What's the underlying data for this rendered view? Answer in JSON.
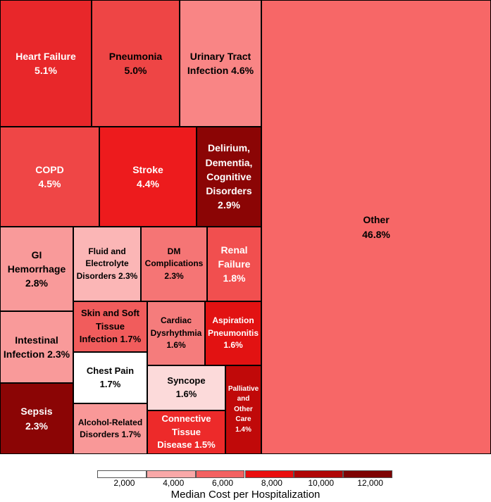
{
  "chart_data": {
    "type": "treemap",
    "colorbar_label": "Median Cost per Hospitalization",
    "colorbar_ticks": [
      "2,000",
      "4,000",
      "6,000",
      "8,000",
      "10,000",
      "12,000"
    ],
    "colorbar_colors": [
      "#ffffff",
      "#f9a8a8",
      "#f36161",
      "#ea0e0e",
      "#b00606",
      "#7e0303"
    ],
    "items": [
      {
        "label": "Heart Failure",
        "pct": "5.1%",
        "share": 5.1,
        "cost_bin": 4,
        "color": "#e8272a"
      },
      {
        "label": "Pneumonia",
        "pct": "5.0%",
        "share": 5.0,
        "cost_bin": 3,
        "color": "#ee4545"
      },
      {
        "label": "Urinary Tract Infection",
        "pct": "4.6%",
        "share": 4.6,
        "cost_bin": 2,
        "color": "#f98585"
      },
      {
        "label": "COPD",
        "pct": "4.5%",
        "share": 4.5,
        "cost_bin": 3,
        "color": "#ef4646"
      },
      {
        "label": "Stroke",
        "pct": "4.4%",
        "share": 4.4,
        "cost_bin": 4,
        "color": "#ed1b1d"
      },
      {
        "label": "Delirium, Dementia, Cognitive Disorders",
        "pct": "2.9%",
        "share": 2.9,
        "cost_bin": 6,
        "color": "#8b0505"
      },
      {
        "label": "GI Hemorrhage",
        "pct": "2.8%",
        "share": 2.8,
        "cost_bin": 2,
        "color": "#f99a9a"
      },
      {
        "label": "Fluid and Electrolyte Disorders",
        "pct": "2.3%",
        "share": 2.3,
        "cost_bin": 2,
        "color": "#fbb6b6"
      },
      {
        "label": "DM Complications",
        "pct": "2.3%",
        "share": 2.3,
        "cost_bin": 3,
        "color": "#f57575"
      },
      {
        "label": "Renal Failure",
        "pct": "1.8%",
        "share": 1.8,
        "cost_bin": 3,
        "color": "#f14f4f"
      },
      {
        "label": "Intestinal Infection",
        "pct": "2.3%",
        "share": 2.3,
        "cost_bin": 2,
        "color": "#f99a9a"
      },
      {
        "label": "Sepsis",
        "pct": "2.3%",
        "share": 2.3,
        "cost_bin": 6,
        "color": "#8b0505"
      },
      {
        "label": "Skin and Soft Tissue Infection",
        "pct": "1.7%",
        "share": 1.7,
        "cost_bin": 3,
        "color": "#f15c5c"
      },
      {
        "label": "Chest Pain",
        "pct": "1.7%",
        "share": 1.7,
        "cost_bin": 1,
        "color": "#ffffff"
      },
      {
        "label": "Alcohol-Related Disorders",
        "pct": "1.7%",
        "share": 1.7,
        "cost_bin": 2,
        "color": "#f99898"
      },
      {
        "label": "Cardiac Dysrhythmia",
        "pct": "1.6%",
        "share": 1.6,
        "cost_bin": 2,
        "color": "#f57c7c"
      },
      {
        "label": "Aspiration Pneumonitis",
        "pct": "1.6%",
        "share": 1.6,
        "cost_bin": 4,
        "color": "#e21212"
      },
      {
        "label": "Syncope",
        "pct": "1.6%",
        "share": 1.6,
        "cost_bin": 1,
        "color": "#fcdada"
      },
      {
        "label": "Connective Tissue Disease",
        "pct": "1.5%",
        "share": 1.5,
        "cost_bin": 4,
        "color": "#ed2a2a"
      },
      {
        "label": "Palliative and Other Care",
        "pct": "1.4%",
        "share": 1.4,
        "cost_bin": 5,
        "color": "#c00909"
      },
      {
        "label": "Other",
        "pct": "46.8%",
        "share": 46.8,
        "cost_bin": 3,
        "color": "#f76767"
      }
    ]
  }
}
